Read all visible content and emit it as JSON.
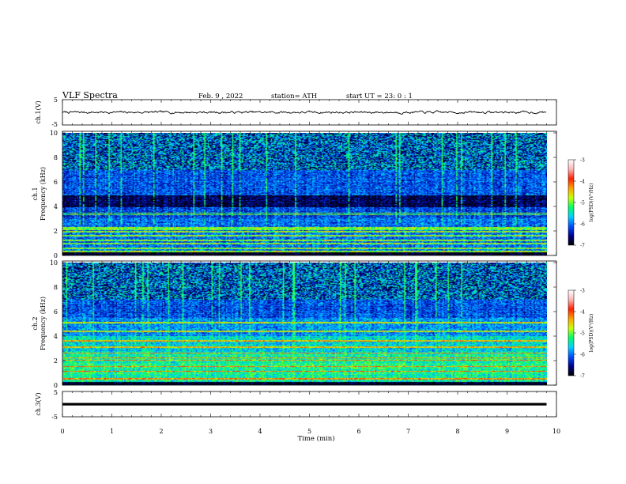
{
  "header": {
    "title": "VLF  Spectra",
    "date": "Feb. 9  , 2022",
    "station": "station= ATH",
    "start": "start  UT  =   23: 0  : 1"
  },
  "chart_data": [
    {
      "type": "line",
      "panel": "ch1-waveform",
      "ylabel": "ch.1(V)",
      "yticks": [
        "5",
        "-5"
      ],
      "ylim": [
        -5,
        5
      ],
      "xlim": [
        0,
        10
      ],
      "x_extent": [
        0,
        9.8
      ],
      "mean_value": 0.0,
      "amplitude_v": 0.4,
      "line_color": "#000000"
    },
    {
      "type": "heatmap",
      "panel": "ch1-spectrogram",
      "ylabel_top": "ch.1",
      "ylabel": "Frequency  (kHz)",
      "yticks": [
        "10",
        "8",
        "6",
        "4",
        "2",
        "0"
      ],
      "ylim": [
        0,
        10
      ],
      "xlim": [
        0,
        10
      ],
      "x_extent": [
        0,
        9.8
      ],
      "colorbar": {
        "label": "log(PSD)(V²/Hz)",
        "ticks": [
          "-3",
          "-4",
          "-5",
          "-6",
          "-7"
        ],
        "range": [
          -7,
          -3
        ],
        "colors": [
          "#000000",
          "#00008c",
          "#0050ff",
          "#00d2ff",
          "#00ff64",
          "#c8ff00",
          "#ffa000",
          "#ff1e00",
          "#ffb4b4",
          "#ffffff"
        ]
      },
      "bright_lines_khz": [
        0.3,
        0.55,
        0.95,
        1.2,
        1.6,
        1.9,
        2.1,
        2.25,
        3.3,
        3.45
      ],
      "dark_band_khz": [
        3.9,
        4.9
      ],
      "noisy_above_khz": 7.0
    },
    {
      "type": "heatmap",
      "panel": "ch2-spectrogram",
      "ylabel_top": "ch.2",
      "ylabel": "Frequency  (kHz)",
      "yticks": [
        "10",
        "8",
        "6",
        "4",
        "2",
        "0"
      ],
      "ylim": [
        0,
        10
      ],
      "xlim": [
        0,
        10
      ],
      "x_extent": [
        0,
        9.8
      ],
      "colorbar": {
        "label": "log(PSD)(V²/Hz)",
        "ticks": [
          "-3",
          "-4",
          "-5",
          "-6",
          "-7"
        ],
        "range": [
          -7,
          -3
        ]
      },
      "bright_lines_khz": [
        0.5,
        1.1,
        1.5,
        2.0,
        2.2,
        2.6,
        3.1,
        3.6,
        4.4,
        5.1
      ],
      "noisy_above_khz": 7.0
    },
    {
      "type": "line",
      "panel": "ch3-waveform",
      "ylabel": "ch.3(V)",
      "yticks": [
        "5",
        "-5"
      ],
      "ylim": [
        -5,
        5
      ],
      "xlim": [
        0,
        10
      ],
      "x_extent": [
        0,
        9.8
      ],
      "mean_value": 0.0,
      "line_color": "#000000"
    }
  ],
  "x_axis": {
    "label": "Time  (min)",
    "ticks": [
      "0",
      "1",
      "2",
      "3",
      "4",
      "5",
      "6",
      "7",
      "8",
      "9",
      "10"
    ]
  }
}
